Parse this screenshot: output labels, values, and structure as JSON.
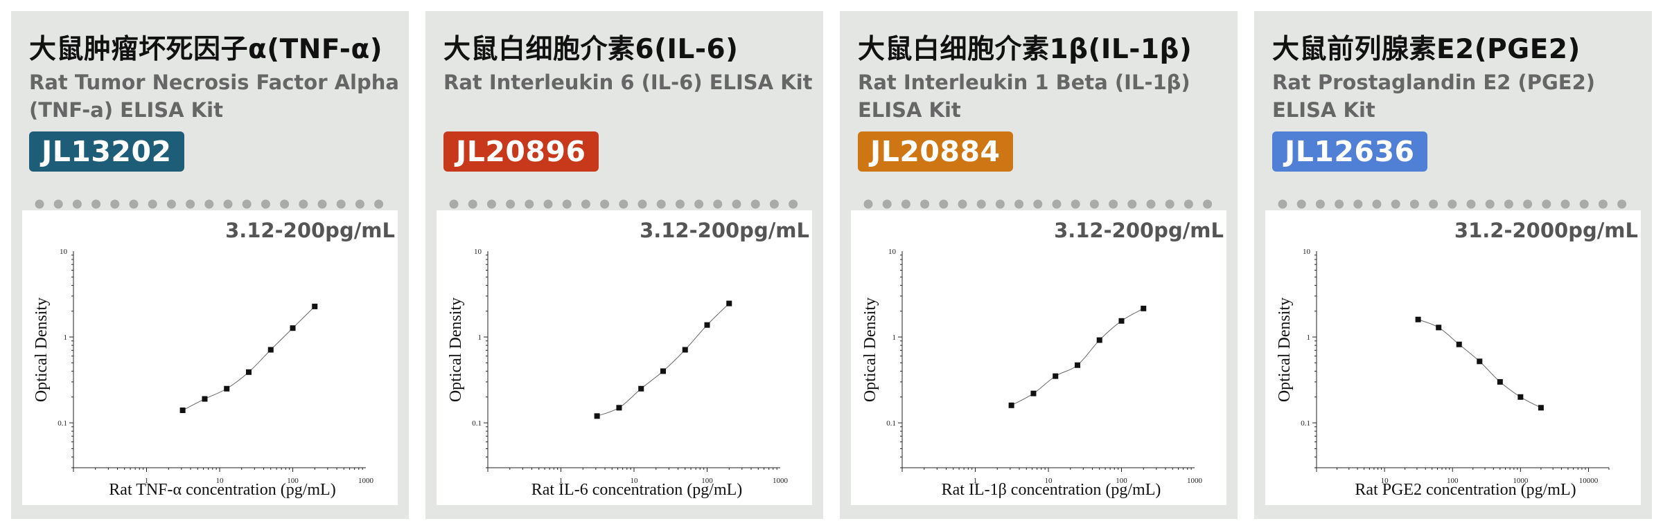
{
  "cards": [
    {
      "title": "大鼠肿瘤坏死因子α(TNF-α)",
      "subtitle": "Rat Tumor Necrosis Factor Alpha (TNF-a) ELISA Kit",
      "code": "JL13202",
      "code_color": "#1d5d78",
      "range": "3.12-200pg/mL",
      "chart_data": {
        "type": "scatter",
        "x_scale": "log",
        "y_scale": "log",
        "xlim": [
          0.1,
          1000
        ],
        "ylim": [
          0.03,
          10
        ],
        "x_ticks": [
          "1",
          "10",
          "100",
          "1000"
        ],
        "y_ticks": [
          "0.1",
          "1",
          "10"
        ],
        "xlabel": "Rat TNF-α concentration (pg/mL)",
        "ylabel": "Optical Density",
        "x": [
          3.12,
          6.25,
          12.5,
          25,
          50,
          100,
          200
        ],
        "y": [
          0.14,
          0.19,
          0.25,
          0.39,
          0.71,
          1.27,
          2.27
        ],
        "fit_curve": true
      }
    },
    {
      "title": "大鼠白细胞介素6(IL-6)",
      "subtitle": "Rat Interleukin 6 (IL-6) ELISA Kit",
      "code": "JL20896",
      "code_color": "#c7391a",
      "range": "3.12-200pg/mL",
      "chart_data": {
        "type": "scatter",
        "x_scale": "log",
        "y_scale": "log",
        "xlim": [
          0.1,
          1000
        ],
        "ylim": [
          0.03,
          10
        ],
        "x_ticks": [
          "1",
          "10",
          "100",
          "1000"
        ],
        "y_ticks": [
          "0.1",
          "1",
          "10"
        ],
        "xlabel": "Rat IL-6 concentration (pg/mL)",
        "ylabel": "Optical Density",
        "x": [
          3.12,
          6.25,
          12.5,
          25,
          50,
          100,
          200
        ],
        "y": [
          0.12,
          0.15,
          0.25,
          0.4,
          0.71,
          1.38,
          2.46
        ],
        "fit_curve": true
      }
    },
    {
      "title": "大鼠白细胞介素1β(IL-1β)",
      "subtitle": "Rat Interleukin 1 Beta (IL-1β) ELISA Kit",
      "code": "JL20884",
      "code_color": "#cf7614",
      "range": "3.12-200pg/mL",
      "chart_data": {
        "type": "scatter",
        "x_scale": "log",
        "y_scale": "log",
        "xlim": [
          0.1,
          1000
        ],
        "ylim": [
          0.03,
          10
        ],
        "x_ticks": [
          "1",
          "10",
          "100",
          "1000"
        ],
        "y_ticks": [
          "0.1",
          "1",
          "10"
        ],
        "xlabel": "Rat IL-1β concentration (pg/mL)",
        "ylabel": "Optical Density",
        "x": [
          3.12,
          6.25,
          12.5,
          25,
          50,
          100,
          200
        ],
        "y": [
          0.16,
          0.22,
          0.35,
          0.47,
          0.92,
          1.54,
          2.15
        ],
        "fit_curve": true
      }
    },
    {
      "title": "大鼠前列腺素E2(PGE2)",
      "subtitle": "Rat Prostaglandin E2 (PGE2) ELISA Kit",
      "code": "JL12636",
      "code_color": "#4f80d6",
      "range": "31.2-2000pg/mL",
      "chart_data": {
        "type": "scatter",
        "x_scale": "log",
        "y_scale": "log",
        "xlim": [
          1,
          20000
        ],
        "ylim": [
          0.03,
          10
        ],
        "x_ticks": [
          "10",
          "100",
          "1000",
          "10000"
        ],
        "y_ticks": [
          "0.1",
          "1",
          "10"
        ],
        "xlabel": "Rat PGE2 concentration (pg/mL)",
        "ylabel": "Optical Density",
        "x": [
          31.2,
          62.5,
          125,
          250,
          500,
          1000,
          2000
        ],
        "y": [
          1.6,
          1.29,
          0.82,
          0.52,
          0.3,
          0.2,
          0.15
        ],
        "fit_curve": true
      }
    }
  ]
}
